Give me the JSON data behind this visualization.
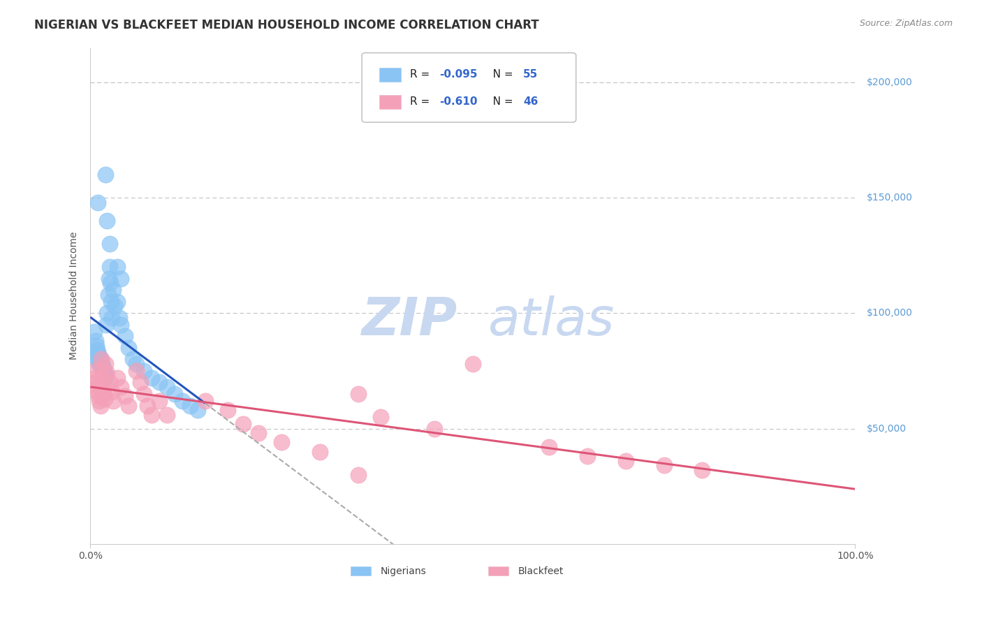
{
  "title": "NIGERIAN VS BLACKFEET MEDIAN HOUSEHOLD INCOME CORRELATION CHART",
  "source": "Source: ZipAtlas.com",
  "ylabel": "Median Household Income",
  "xlim": [
    0.0,
    1.0
  ],
  "ylim": [
    0,
    215000
  ],
  "xtick_labels": [
    "0.0%",
    "100.0%"
  ],
  "ytick_values": [
    50000,
    100000,
    150000,
    200000
  ],
  "ytick_labels": [
    "$50,000",
    "$100,000",
    "$150,000",
    "$200,000"
  ],
  "nigerian_R": "-0.095",
  "nigerian_N": "55",
  "blackfeet_R": "-0.610",
  "blackfeet_N": "46",
  "nigerian_color": "#89C4F4",
  "blackfeet_color": "#F4A0B8",
  "nigerian_line_color": "#2255BB",
  "blackfeet_line_color": "#DD5577",
  "watermark_zip": "ZIP",
  "watermark_atlas": "atlas",
  "watermark_color": "#C8D8F0",
  "nigerian_scatter_x": [
    0.005,
    0.007,
    0.008,
    0.009,
    0.01,
    0.01,
    0.011,
    0.011,
    0.012,
    0.012,
    0.013,
    0.013,
    0.014,
    0.015,
    0.015,
    0.016,
    0.016,
    0.017,
    0.017,
    0.018,
    0.018,
    0.019,
    0.019,
    0.02,
    0.021,
    0.022,
    0.023,
    0.024,
    0.025,
    0.026,
    0.027,
    0.028,
    0.03,
    0.032,
    0.035,
    0.038,
    0.04,
    0.045,
    0.05,
    0.055,
    0.06,
    0.07,
    0.08,
    0.09,
    0.1,
    0.11,
    0.12,
    0.13,
    0.14,
    0.02,
    0.022,
    0.025,
    0.035,
    0.04,
    0.01
  ],
  "nigerian_scatter_y": [
    92000,
    88000,
    86000,
    84000,
    83000,
    80000,
    82000,
    79000,
    81000,
    78000,
    80000,
    77000,
    79000,
    78000,
    76000,
    77000,
    75000,
    76000,
    74000,
    75000,
    73000,
    74000,
    72000,
    73000,
    95000,
    100000,
    108000,
    115000,
    120000,
    113000,
    105000,
    98000,
    110000,
    103000,
    105000,
    98000,
    95000,
    90000,
    85000,
    80000,
    78000,
    75000,
    72000,
    70000,
    68000,
    65000,
    62000,
    60000,
    58000,
    160000,
    140000,
    130000,
    120000,
    115000,
    148000
  ],
  "blackfeet_scatter_x": [
    0.005,
    0.007,
    0.008,
    0.009,
    0.01,
    0.011,
    0.012,
    0.013,
    0.014,
    0.015,
    0.016,
    0.017,
    0.018,
    0.019,
    0.02,
    0.022,
    0.025,
    0.028,
    0.03,
    0.035,
    0.04,
    0.045,
    0.05,
    0.06,
    0.065,
    0.07,
    0.075,
    0.08,
    0.09,
    0.1,
    0.15,
    0.18,
    0.2,
    0.22,
    0.25,
    0.3,
    0.35,
    0.38,
    0.45,
    0.5,
    0.6,
    0.65,
    0.7,
    0.75,
    0.8,
    0.35
  ],
  "blackfeet_scatter_y": [
    75000,
    72000,
    70000,
    68000,
    66000,
    64000,
    62000,
    60000,
    80000,
    76000,
    72000,
    68000,
    65000,
    63000,
    78000,
    74000,
    70000,
    66000,
    62000,
    72000,
    68000,
    64000,
    60000,
    75000,
    70000,
    65000,
    60000,
    56000,
    62000,
    56000,
    62000,
    58000,
    52000,
    48000,
    44000,
    40000,
    65000,
    55000,
    50000,
    78000,
    42000,
    38000,
    36000,
    34000,
    32000,
    30000
  ]
}
